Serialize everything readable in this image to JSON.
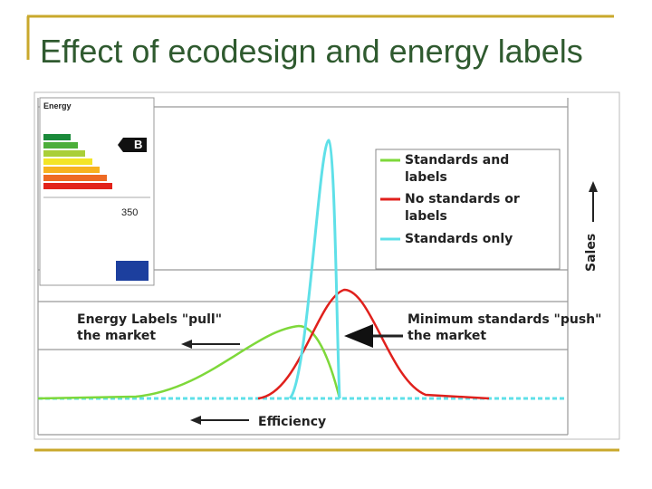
{
  "slide": {
    "title": "Effect of ecodesign and energy labels",
    "figure": {
      "legend": [
        {
          "label": "Standards and labels",
          "color": "#7ed83a"
        },
        {
          "label": "No standards or labels",
          "color": "#e0201c"
        },
        {
          "label": "Standards only",
          "color": "#5fe0e8"
        }
      ],
      "annotations": {
        "pull": "Energy Labels \"pull\" the market",
        "push": "Minimum standards \"push\" the market",
        "x_axis": "Efficiency",
        "y_axis": "Sales"
      },
      "energy_label": {
        "heading": "Energy",
        "class": "B",
        "consumption": "350"
      }
    }
  }
}
